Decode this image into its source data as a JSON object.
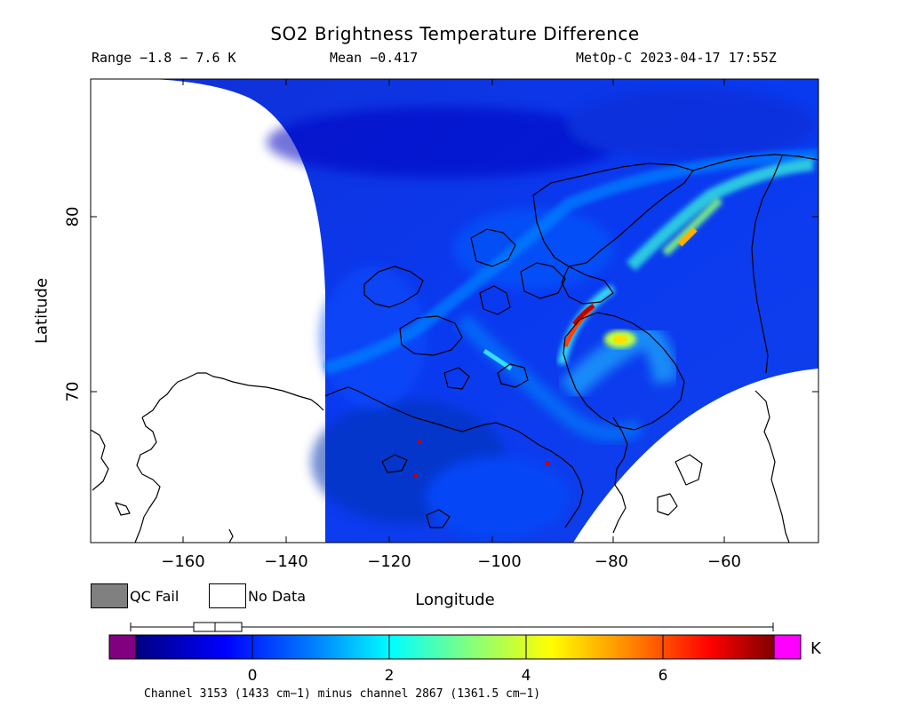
{
  "title": "SO2 Brightness Temperature Difference",
  "info": {
    "range": "Range −1.8 − 7.6 K",
    "mean": "Mean −0.417",
    "satellite_time": "MetOp-C 2023-04-17 17:55Z"
  },
  "axes": {
    "ylabel": "Latitude",
    "xlabel": "Longitude",
    "lat_ticks": [
      "80",
      "70"
    ],
    "lon_ticks": [
      "−160",
      "−140",
      "−120",
      "−100",
      "−80",
      "−60"
    ],
    "lon_range": [
      -177,
      -43
    ],
    "lat_range": [
      61.5,
      88
    ]
  },
  "legend": {
    "qc_fail": "QC Fail",
    "no_data": "No Data",
    "qc_fail_color": "#808080",
    "no_data_color": "#ffffff"
  },
  "colorbar": {
    "unit": "K",
    "ticks": [
      "0",
      "2",
      "4",
      "6"
    ],
    "range": [
      -1.8,
      7.6
    ],
    "low_color": "#800080",
    "high_color": "#ff00ff",
    "stops": [
      "#000080",
      "#0000ff",
      "#0080ff",
      "#00ffff",
      "#80ff80",
      "#ffff00",
      "#ff8000",
      "#ff0000",
      "#800000"
    ],
    "boxplot": {
      "whisker_low": -1.8,
      "q1": -0.9,
      "median": -0.6,
      "q3": -0.2,
      "whisker_high": 7.6
    }
  },
  "footnote": "Channel 3153 (1433 cm−1) minus channel 2867 (1361.5 cm−1)"
}
